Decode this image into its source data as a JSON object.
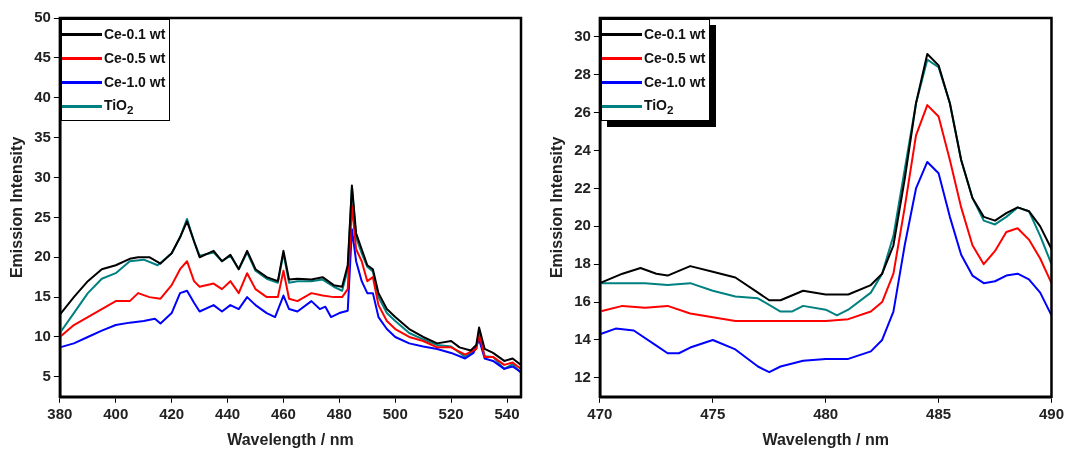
{
  "chart_data": [
    {
      "type": "line",
      "xlabel": "Wavelength / nm",
      "ylabel": "Emission Intensity",
      "xlim": [
        380,
        545
      ],
      "xticks": [
        380,
        400,
        420,
        440,
        460,
        480,
        500,
        520,
        540
      ],
      "ylim": [
        2.5,
        50
      ],
      "yticks": [
        5,
        10,
        15,
        20,
        25,
        30,
        35,
        40,
        45,
        50
      ],
      "grid": false,
      "legend": "top left",
      "marker": "none",
      "line_style": "solid",
      "series": [
        {
          "name": "Ce-0.1 wt",
          "color": "#000000",
          "x": [
            380,
            385,
            390,
            395,
            400,
            405,
            408,
            412,
            416,
            420,
            423,
            425.5,
            428,
            430,
            435,
            438,
            441,
            444,
            447,
            450,
            454,
            458,
            460,
            462,
            465,
            470,
            474,
            478,
            481,
            483,
            484.5,
            486,
            488,
            490,
            492,
            494,
            497,
            500,
            505,
            510,
            515,
            520,
            523,
            527,
            529,
            530,
            532,
            535,
            539,
            542,
            545
          ],
          "values": [
            12.8,
            15,
            17,
            18.5,
            19,
            19.8,
            20,
            20,
            19.2,
            20.5,
            22.5,
            24.5,
            22,
            20,
            20.8,
            19.5,
            20.3,
            18.5,
            20.8,
            18.5,
            17.5,
            17,
            20.8,
            17.2,
            17.3,
            17.2,
            17.5,
            16.5,
            16.3,
            19,
            29,
            23,
            21,
            19,
            18.5,
            15.5,
            13.5,
            12.5,
            11,
            10,
            9.2,
            9.5,
            8.7,
            8.3,
            9,
            11.2,
            8.5,
            8,
            7,
            7.3,
            6.5
          ]
        },
        {
          "name": "Ce-0.5 wt",
          "color": "#ff0000",
          "x": [
            380,
            385,
            390,
            395,
            400,
            405,
            408,
            412,
            416,
            420,
            423,
            425.5,
            428,
            430,
            435,
            438,
            441,
            444,
            447,
            450,
            454,
            458,
            460,
            462,
            465,
            470,
            474,
            478,
            481,
            483,
            484.5,
            486,
            488,
            490,
            492,
            494,
            497,
            500,
            505,
            510,
            515,
            520,
            525,
            529,
            530,
            532,
            535,
            539,
            542,
            545
          ],
          "values": [
            10,
            11.5,
            12.5,
            13.5,
            14.5,
            14.5,
            15.5,
            15,
            14.8,
            16.5,
            18.5,
            19.5,
            17,
            16.3,
            16.7,
            16,
            17,
            15.5,
            18,
            16,
            15,
            15,
            18.3,
            14.8,
            14.5,
            15.5,
            15.2,
            15,
            15,
            16,
            26.5,
            21,
            19.5,
            17,
            17.5,
            14,
            12,
            11,
            10,
            9.5,
            8.7,
            8.7,
            7.8,
            8.5,
            10.5,
            7.5,
            7.5,
            6.5,
            6.8,
            6
          ]
        },
        {
          "name": "Ce-1.0 wt",
          "color": "#0000ff",
          "x": [
            380,
            385,
            390,
            395,
            400,
            405,
            410,
            414,
            416,
            420,
            423,
            425.5,
            428,
            430,
            435,
            438,
            441,
            444,
            447,
            450,
            454,
            457,
            460,
            462,
            465,
            470,
            473,
            475,
            477,
            480,
            483,
            484.5,
            486,
            488,
            490,
            492,
            494,
            497,
            500,
            505,
            510,
            515,
            520,
            525,
            528,
            530,
            532,
            535,
            539,
            542,
            545
          ],
          "values": [
            8.7,
            9.2,
            10,
            10.8,
            11.5,
            11.8,
            12,
            12.3,
            11.7,
            13,
            15.5,
            15.8,
            14.3,
            13.2,
            14,
            13.2,
            14,
            13.5,
            15,
            14,
            13,
            12.5,
            15.2,
            13.5,
            13.2,
            14.5,
            13.5,
            13.8,
            12.5,
            13,
            13.3,
            23.5,
            19.5,
            17,
            15.5,
            15.5,
            12.5,
            11,
            10,
            9.2,
            8.8,
            8.5,
            8,
            7.3,
            8,
            9.7,
            7.3,
            7,
            6,
            6.3,
            5.6
          ]
        },
        {
          "name": "TiO$_{2}$",
          "color": "#008080",
          "x": [
            380,
            385,
            390,
            395,
            400,
            405,
            410,
            415,
            420,
            423,
            425.5,
            428,
            430,
            435,
            438,
            441,
            444,
            447,
            450,
            454,
            458,
            460,
            462,
            465,
            470,
            474,
            478,
            481,
            483,
            484.5,
            486,
            488,
            490,
            492,
            494,
            497,
            500,
            505,
            510,
            515,
            520,
            525,
            529,
            530,
            532,
            535,
            539,
            542,
            545
          ],
          "values": [
            10.5,
            13,
            15.5,
            17.3,
            18,
            19.5,
            19.7,
            19,
            20.5,
            22.5,
            24.8,
            22,
            20.2,
            20.6,
            19.5,
            20.2,
            18.5,
            20.6,
            18.3,
            17.3,
            16.8,
            20.5,
            16.8,
            17,
            17,
            17.2,
            16.3,
            15.8,
            18.5,
            28.8,
            22.5,
            20.5,
            18.8,
            18.2,
            15,
            13,
            12,
            10.5,
            9.7,
            9,
            8.8,
            7.5,
            8.5,
            10.5,
            7.6,
            7.5,
            6,
            6.6,
            5.5
          ]
        }
      ]
    },
    {
      "type": "line",
      "xlabel": "Wavelength / nm",
      "ylabel": "Emission Intensity",
      "xlim": [
        470,
        490
      ],
      "xticks": [
        470,
        475,
        480,
        485,
        490
      ],
      "ylim": [
        11,
        31
      ],
      "yticks": [
        12,
        14,
        16,
        18,
        20,
        22,
        24,
        26,
        28,
        30
      ],
      "grid": false,
      "legend": "top left",
      "marker": "none",
      "line_style": "solid",
      "series": [
        {
          "name": "Ce-0.1 wt",
          "color": "#000000",
          "x": [
            470,
            471,
            471.8,
            472.5,
            473,
            474,
            475,
            476,
            477,
            477.5,
            478,
            479,
            480,
            481,
            482,
            482.5,
            483,
            483.5,
            484,
            484.5,
            485,
            485.5,
            486,
            486.5,
            487,
            487.5,
            488,
            488.5,
            489,
            489.5,
            490
          ],
          "values": [
            17,
            17.5,
            17.8,
            17.5,
            17.4,
            17.9,
            17.6,
            17.3,
            16.5,
            16.1,
            16.1,
            16.6,
            16.4,
            16.4,
            16.9,
            17.5,
            19,
            22.5,
            26.5,
            29.1,
            28.5,
            26.5,
            23.5,
            21.5,
            20.5,
            20.3,
            20.7,
            21,
            20.8,
            20,
            18.8
          ]
        },
        {
          "name": "Ce-0.5 wt",
          "color": "#ff0000",
          "x": [
            470,
            471,
            472,
            473,
            474,
            475,
            476,
            478,
            480,
            481,
            482,
            482.5,
            483,
            483.5,
            484,
            484.5,
            485,
            485.5,
            486,
            486.5,
            487,
            487.5,
            488,
            488.5,
            489,
            489.5,
            490
          ],
          "values": [
            15.5,
            15.8,
            15.7,
            15.8,
            15.4,
            15.2,
            15,
            15,
            15,
            15.1,
            15.5,
            16,
            17.5,
            21,
            24.8,
            26.4,
            25.8,
            23.5,
            21,
            19,
            18,
            18.7,
            19.7,
            19.9,
            19.3,
            18.3,
            17
          ]
        },
        {
          "name": "Ce-1.0 wt",
          "color": "#0000ff",
          "x": [
            470,
            470.7,
            471.5,
            472.5,
            473,
            473.5,
            474,
            475,
            476,
            477,
            477.5,
            478,
            479,
            480,
            481,
            482,
            482.5,
            483,
            483.5,
            484,
            484.5,
            485,
            485.5,
            486,
            486.5,
            487,
            487.5,
            488,
            488.5,
            489,
            489.5,
            490
          ],
          "values": [
            14.3,
            14.6,
            14.5,
            13.7,
            13.3,
            13.3,
            13.6,
            14,
            13.5,
            12.6,
            12.3,
            12.6,
            12.9,
            13,
            13,
            13.4,
            14,
            15.5,
            19,
            22,
            23.4,
            22.8,
            20.5,
            18.5,
            17.4,
            17,
            17.1,
            17.4,
            17.5,
            17.2,
            16.5,
            15.3
          ]
        },
        {
          "name": "TiO$_{2}$",
          "color": "#008080",
          "x": [
            470,
            472,
            473,
            474,
            475,
            476,
            477,
            478,
            478.5,
            479,
            480,
            480.5,
            481,
            482,
            482.5,
            483,
            483.5,
            484,
            484.5,
            485,
            485.5,
            486,
            486.5,
            487,
            487.5,
            488,
            488.5,
            489,
            489.5,
            490
          ],
          "values": [
            17,
            17,
            16.9,
            17,
            16.6,
            16.3,
            16.2,
            15.5,
            15.5,
            15.8,
            15.6,
            15.3,
            15.6,
            16.5,
            17.5,
            19.5,
            23,
            26.5,
            28.8,
            28.4,
            26.5,
            23.5,
            21.5,
            20.3,
            20.1,
            20.5,
            21,
            20.8,
            19.5,
            18
          ]
        }
      ]
    }
  ]
}
